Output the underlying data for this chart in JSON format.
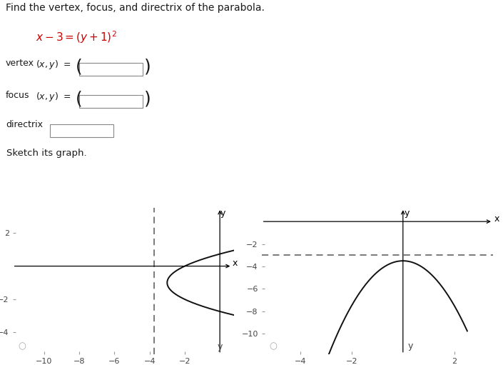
{
  "title_text": "Find the vertex, focus, and directrix of the parabola.",
  "sketch_label": "Sketch its graph.",
  "left_plot": {
    "xlim": [
      -11.8,
      0.8
    ],
    "ylim": [
      -5.3,
      3.5
    ],
    "xticks": [
      -10,
      -8,
      -6,
      -4,
      -2
    ],
    "yticks": [
      -4,
      -2,
      2
    ],
    "dashed_x": -3.75,
    "y_min": -5.0,
    "y_max": 3.0
  },
  "right_plot": {
    "xlim": [
      -5.5,
      3.5
    ],
    "ylim": [
      -11.8,
      1.2
    ],
    "xticks": [
      -4,
      -2,
      2
    ],
    "yticks": [
      -10,
      -8,
      -6,
      -4,
      -2
    ],
    "dashed_y": -3.0,
    "x_min": -4.8,
    "x_max": 2.5
  },
  "bg_color": "#ffffff",
  "text_color": "#1a1a1a",
  "eq_color": "#cc0000",
  "curve_color": "#111111",
  "dashed_color": "#555555",
  "tick_color": "#444444",
  "radio_color": "#aaaaaa",
  "box_edge_color": "#888888",
  "font_title": 10,
  "font_label": 9,
  "font_tick": 8,
  "font_eq": 11
}
